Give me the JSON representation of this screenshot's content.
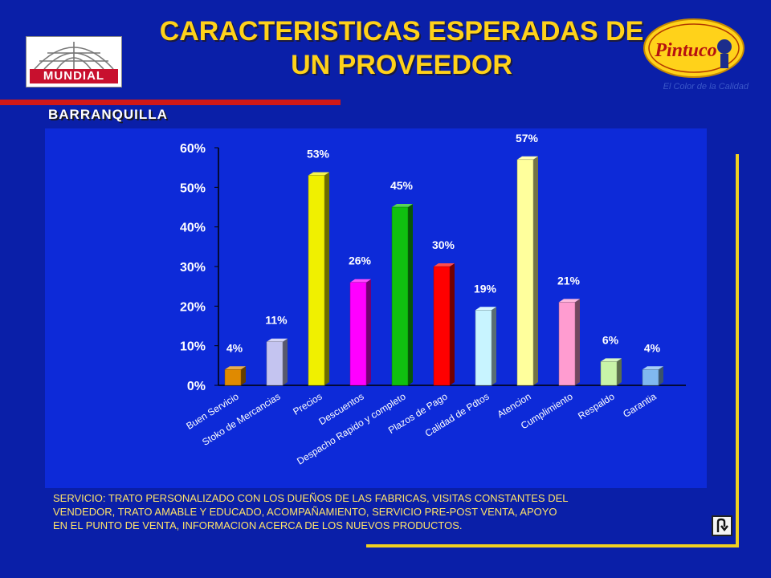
{
  "header": {
    "title_line1": "CARACTERISTICAS ESPERADAS DE",
    "title_line2": "UN PROVEEDOR",
    "subtitle": "BARRANQUILLA"
  },
  "logos": {
    "left": {
      "text": "MUNDIAL"
    },
    "right": {
      "text": "Pintuco",
      "tagline": "El Color de la Calidad"
    }
  },
  "note": {
    "text": "SERVICIO: TRATO PERSONALIZADO CON LOS DUEÑOS DE LAS FABRICAS, VISITAS CONSTANTES DEL\n VENDEDOR, TRATO AMABLE Y EDUCADO, ACOMPAÑAMIENTO, SERVICIO PRE-POST VENTA, APOYO\nEN EL PUNTO DE VENTA, INFORMACION ACERCA DE LOS NUEVOS PRODUCTOS."
  },
  "nav": {
    "return_icon": "return-arrow-icon"
  },
  "chart_data": {
    "type": "bar",
    "title": "",
    "xlabel": "",
    "ylabel": "",
    "ylim": [
      0,
      60
    ],
    "yticks": [
      "0%",
      "10%",
      "20%",
      "30%",
      "40%",
      "50%",
      "60%"
    ],
    "categories": [
      "Buen Servicio",
      "Stoko de Mercancias",
      "Precios",
      "Descuentos",
      "Despacho Rapido y completo",
      "Plazos de Pago",
      "Calidad de Pdtos",
      "Atencion",
      "Cumplimiento",
      "Respaldo",
      "Garantia"
    ],
    "values": [
      4,
      11,
      53,
      26,
      45,
      30,
      19,
      57,
      21,
      6,
      4
    ],
    "labels": [
      "4%",
      "11%",
      "53%",
      "26%",
      "45%",
      "30%",
      "19%",
      "57%",
      "21%",
      "6%",
      "4%"
    ],
    "colors": [
      "#e08a00",
      "#c4c4f0",
      "#f0f000",
      "#ff00ff",
      "#10c010",
      "#ff0000",
      "#c8f4ff",
      "#ffff9c",
      "#ff9cd0",
      "#c8f4a8",
      "#80b8f0"
    ],
    "grid": false,
    "legend": "none"
  }
}
